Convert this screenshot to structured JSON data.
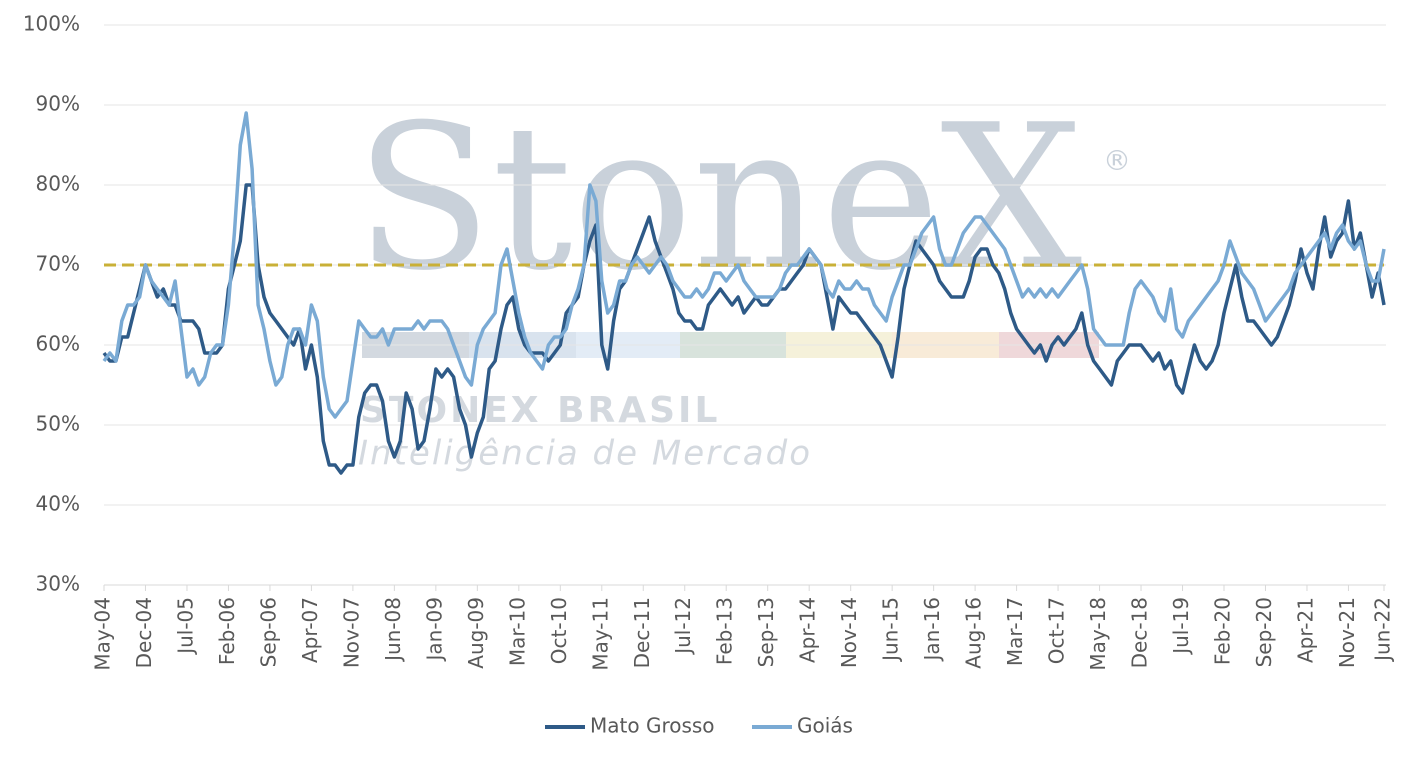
{
  "chart_data": {
    "type": "line",
    "watermark": {
      "logo": "StoneX",
      "mark": "®",
      "line1": "STONEX BRASIL",
      "line2": "Inteligência de Mercado"
    },
    "categories": [
      "May-04",
      null,
      null,
      null,
      null,
      null,
      null,
      "Dec-04",
      null,
      null,
      null,
      null,
      null,
      null,
      "Jul-05",
      null,
      null,
      null,
      null,
      null,
      null,
      "Feb-06",
      null,
      null,
      null,
      null,
      null,
      null,
      "Sep-06",
      null,
      null,
      null,
      null,
      null,
      null,
      "Apr-07",
      null,
      null,
      null,
      null,
      null,
      null,
      "Nov-07",
      null,
      null,
      null,
      null,
      null,
      null,
      "Jun-08",
      null,
      null,
      null,
      null,
      null,
      null,
      "Jan-09",
      null,
      null,
      null,
      null,
      null,
      null,
      "Aug-09",
      null,
      null,
      null,
      null,
      null,
      null,
      "Mar-10",
      null,
      null,
      null,
      null,
      null,
      null,
      "Oct-10",
      null,
      null,
      null,
      null,
      null,
      null,
      "May-11",
      null,
      null,
      null,
      null,
      null,
      null,
      "Dec-11",
      null,
      null,
      null,
      null,
      null,
      null,
      "Jul-12",
      null,
      null,
      null,
      null,
      null,
      null,
      "Feb-13",
      null,
      null,
      null,
      null,
      null,
      null,
      "Sep-13",
      null,
      null,
      null,
      null,
      null,
      null,
      "Apr-14",
      null,
      null,
      null,
      null,
      null,
      null,
      "Nov-14",
      null,
      null,
      null,
      null,
      null,
      null,
      "Jun-15",
      null,
      null,
      null,
      null,
      null,
      null,
      "Jan-16",
      null,
      null,
      null,
      null,
      null,
      null,
      "Aug-16",
      null,
      null,
      null,
      null,
      null,
      null,
      "Mar-17",
      null,
      null,
      null,
      null,
      null,
      null,
      "Oct-17",
      null,
      null,
      null,
      null,
      null,
      null,
      "May-18",
      null,
      null,
      null,
      null,
      null,
      null,
      "Dec-18",
      null,
      null,
      null,
      null,
      null,
      null,
      "Jul-19",
      null,
      null,
      null,
      null,
      null,
      null,
      "Feb-20",
      null,
      null,
      null,
      null,
      null,
      null,
      "Sep-20",
      null,
      null,
      null,
      null,
      null,
      null,
      "Apr-21",
      null,
      null,
      null,
      null,
      null,
      null,
      "Nov-21",
      null,
      null,
      null,
      null,
      null,
      "Jun-22"
    ],
    "series": [
      {
        "name": "Mato Grosso",
        "color": "#2e5a87",
        "values": [
          59,
          58,
          58,
          61,
          61,
          64,
          67,
          70,
          68,
          66,
          67,
          65,
          65,
          63,
          63,
          63,
          62,
          59,
          59,
          59,
          60,
          67,
          70,
          73,
          80,
          80,
          70,
          66,
          64,
          63,
          62,
          61,
          60,
          62,
          57,
          60,
          56,
          48,
          45,
          45,
          44,
          45,
          45,
          51,
          54,
          55,
          55,
          53,
          48,
          46,
          48,
          54,
          52,
          47,
          48,
          52,
          57,
          56,
          57,
          56,
          52,
          50,
          46,
          49,
          51,
          57,
          58,
          62,
          65,
          66,
          62,
          60,
          59,
          59,
          59,
          58,
          59,
          60,
          64,
          65,
          66,
          70,
          73,
          75,
          60,
          57,
          63,
          67,
          68,
          70,
          72,
          74,
          76,
          73,
          71,
          69,
          67,
          64,
          63,
          63,
          62,
          62,
          65,
          66,
          67,
          66,
          65,
          66,
          64,
          65,
          66,
          65,
          65,
          66,
          67,
          67,
          68,
          69,
          70,
          72,
          71,
          70,
          66,
          62,
          66,
          65,
          64,
          64,
          63,
          62,
          61,
          60,
          58,
          56,
          61,
          67,
          70,
          73,
          72,
          71,
          70,
          68,
          67,
          66,
          66,
          66,
          68,
          71,
          72,
          72,
          70,
          69,
          67,
          64,
          62,
          61,
          60,
          59,
          60,
          58,
          60,
          61,
          60,
          61,
          62,
          64,
          60,
          58,
          57,
          56,
          55,
          58,
          59,
          60,
          60,
          60,
          59,
          58,
          59,
          57,
          58,
          55,
          54,
          57,
          60,
          58,
          57,
          58,
          60,
          64,
          67,
          70,
          66,
          63,
          63,
          62,
          61,
          60,
          61,
          63,
          65,
          68,
          72,
          69,
          67,
          72,
          76,
          71,
          73,
          74,
          78,
          72,
          74,
          70,
          66,
          69,
          65
        ]
      },
      {
        "name": "Goiás",
        "color": "#7aaad4",
        "values": [
          58,
          59,
          58,
          63,
          65,
          65,
          66,
          70,
          68,
          67,
          66,
          65,
          68,
          62,
          56,
          57,
          55,
          56,
          59,
          60,
          60,
          65,
          74,
          85,
          89,
          82,
          65,
          62,
          58,
          55,
          56,
          60,
          62,
          62,
          60,
          65,
          63,
          56,
          52,
          51,
          52,
          53,
          58,
          63,
          62,
          61,
          61,
          62,
          60,
          62,
          62,
          62,
          62,
          63,
          62,
          63,
          63,
          63,
          62,
          60,
          58,
          56,
          55,
          60,
          62,
          63,
          64,
          70,
          72,
          68,
          64,
          61,
          59,
          58,
          57,
          60,
          61,
          61,
          62,
          65,
          67,
          70,
          80,
          78,
          68,
          64,
          65,
          68,
          68,
          70,
          71,
          70,
          69,
          70,
          71,
          70,
          68,
          67,
          66,
          66,
          67,
          66,
          67,
          69,
          69,
          68,
          69,
          70,
          68,
          67,
          66,
          66,
          66,
          66,
          67,
          69,
          70,
          70,
          71,
          72,
          71,
          70,
          67,
          66,
          68,
          67,
          67,
          68,
          67,
          67,
          65,
          64,
          63,
          66,
          68,
          70,
          70,
          72,
          74,
          75,
          76,
          72,
          70,
          70,
          72,
          74,
          75,
          76,
          76,
          75,
          74,
          73,
          72,
          70,
          68,
          66,
          67,
          66,
          67,
          66,
          67,
          66,
          67,
          68,
          69,
          70,
          67,
          62,
          61,
          60,
          60,
          60,
          60,
          64,
          67,
          68,
          67,
          66,
          64,
          63,
          67,
          62,
          61,
          63,
          64,
          65,
          66,
          67,
          68,
          70,
          73,
          71,
          69,
          68,
          67,
          65,
          63,
          64,
          65,
          66,
          67,
          69,
          70,
          71,
          72,
          73,
          74,
          72,
          74,
          75,
          73,
          72,
          73,
          70,
          68,
          68,
          72
        ]
      }
    ],
    "reference_line": {
      "value": 70,
      "color": "#c9b037"
    },
    "ylim": [
      30,
      100
    ],
    "yticks": [
      {
        "value": 30,
        "label": "30%"
      },
      {
        "value": 40,
        "label": "40%"
      },
      {
        "value": 50,
        "label": "50%"
      },
      {
        "value": 60,
        "label": "60%"
      },
      {
        "value": 70,
        "label": "70%"
      },
      {
        "value": 80,
        "label": "80%"
      },
      {
        "value": 90,
        "label": "90%"
      },
      {
        "value": 100,
        "label": "100%"
      }
    ],
    "grid": true,
    "legend": "bottom"
  }
}
